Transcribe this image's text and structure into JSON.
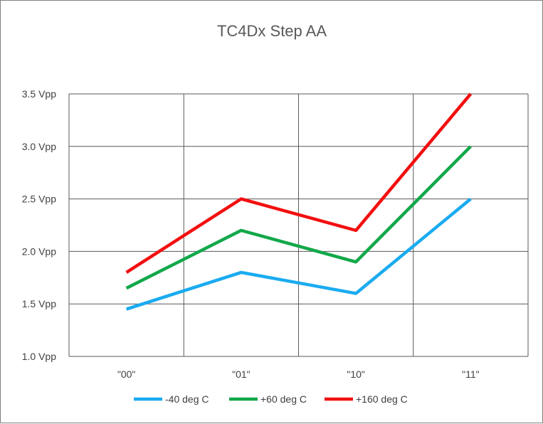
{
  "chart_data": {
    "type": "line",
    "title": "TC4Dx Step AA",
    "xlabel": "",
    "ylabel": "",
    "categories": [
      "\"00\"",
      "\"01\"",
      "\"10\"",
      "\"11\""
    ],
    "y_ticks": [
      "1.0 Vpp",
      "1.5 Vpp",
      "2.0 Vpp",
      "2.5 Vpp",
      "3.0 Vpp",
      "3.5 Vpp"
    ],
    "y_tick_values": [
      1.0,
      1.5,
      2.0,
      2.5,
      3.0,
      3.5
    ],
    "ylim": [
      1.0,
      3.5
    ],
    "grid": true,
    "legend_position": "bottom",
    "series": [
      {
        "name": "-40 deg C",
        "color": "#1aabf0",
        "values": [
          1.45,
          1.8,
          1.6,
          2.5
        ]
      },
      {
        "name": "+60 deg C",
        "color": "#12a84a",
        "values": [
          1.65,
          2.2,
          1.9,
          3.0
        ]
      },
      {
        "name": "+160 deg C",
        "color": "#f20f0f",
        "values": [
          1.8,
          2.5,
          2.2,
          3.5
        ]
      }
    ]
  }
}
